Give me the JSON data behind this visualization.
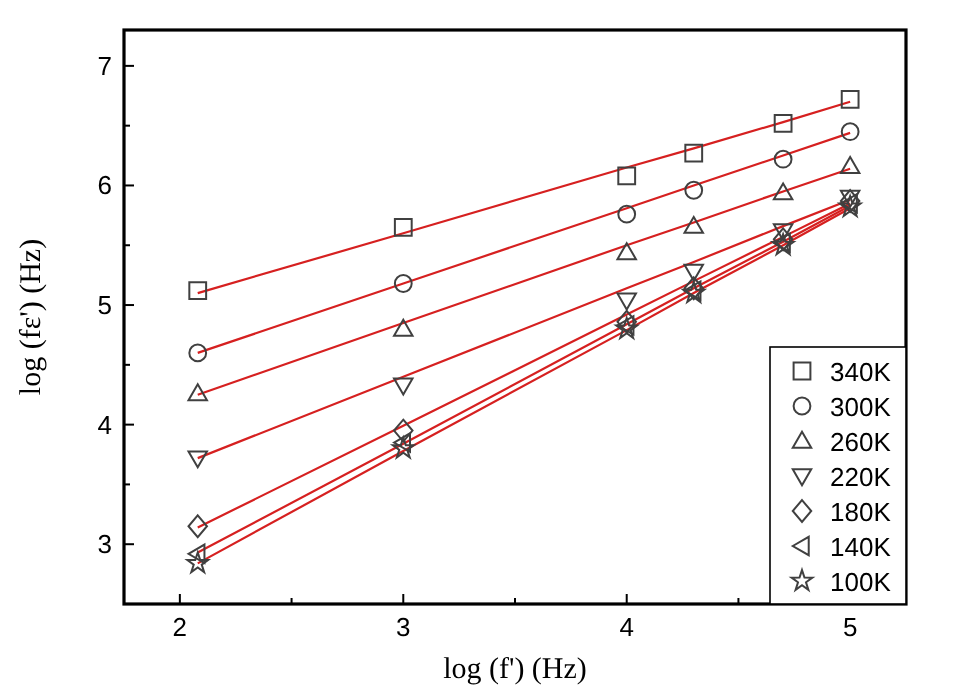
{
  "chart_data": {
    "type": "scatter",
    "xlabel": "log (f') (Hz)",
    "ylabel": "log (fε') (Hz)",
    "xlim": [
      1.75,
      5.25
    ],
    "ylim": [
      2.5,
      7.3
    ],
    "xticks": [
      2,
      {
        "value": 2.5,
        "label": null
      },
      3,
      {
        "value": 3.5,
        "label": null
      },
      4,
      {
        "value": 4.5,
        "label": null
      },
      5
    ],
    "yticks": [
      3,
      {
        "value": 3.5,
        "label": null
      },
      4,
      {
        "value": 4.5,
        "label": null
      },
      5,
      {
        "value": 5.5,
        "label": null
      },
      6,
      {
        "value": 6.5,
        "label": null
      },
      7
    ],
    "legend": "bottom right",
    "grid": false,
    "x": [
      2.08,
      3,
      4,
      4.3,
      4.7,
      5
    ],
    "series": [
      {
        "name": "340K",
        "color": "#404040",
        "marker": "square",
        "values": [
          5.12,
          5.65,
          6.08,
          6.27,
          6.52,
          6.72
        ]
      },
      {
        "name": "300K",
        "color": "#404040",
        "marker": "circle",
        "values": [
          4.6,
          5.18,
          5.76,
          5.96,
          6.22,
          6.45
        ]
      },
      {
        "name": "260K",
        "color": "#404040",
        "marker": "triangle",
        "values": [
          4.26,
          4.8,
          5.44,
          5.66,
          5.94,
          6.16
        ]
      },
      {
        "name": "220K",
        "color": "#404040",
        "marker": "triangle-down",
        "values": [
          3.72,
          4.33,
          5.04,
          5.28,
          5.62,
          5.9
        ]
      },
      {
        "name": "180K",
        "color": "#404040",
        "marker": "diamond",
        "values": [
          3.15,
          3.95,
          4.86,
          5.14,
          5.55,
          5.87
        ]
      },
      {
        "name": "140K",
        "color": "#404040",
        "marker": "triangle-left",
        "values": [
          2.92,
          3.85,
          4.83,
          5.12,
          5.52,
          5.85
        ]
      },
      {
        "name": "100K",
        "color": "#404040",
        "marker": "star",
        "values": [
          2.84,
          3.8,
          4.8,
          5.1,
          5.5,
          5.82
        ]
      },
      {
        "type": "line",
        "color": "#d62020",
        "values": [
          5.1,
          5.6,
          6.15,
          6.31,
          6.53,
          6.7
        ]
      },
      {
        "type": "line",
        "color": "#d62020",
        "values": [
          4.6,
          5.18,
          5.81,
          6.0,
          6.25,
          6.44
        ]
      },
      {
        "type": "line",
        "color": "#d62020",
        "values": [
          4.25,
          4.85,
          5.5,
          5.69,
          5.95,
          6.14
        ]
      },
      {
        "type": "line",
        "color": "#d62020",
        "values": [
          3.72,
          4.4,
          5.14,
          5.36,
          5.66,
          5.88
        ]
      },
      {
        "type": "line",
        "color": "#d62020",
        "values": [
          3.14,
          3.99,
          4.92,
          5.2,
          5.57,
          5.85
        ]
      },
      {
        "type": "line",
        "color": "#d62020",
        "values": [
          2.93,
          3.84,
          4.84,
          5.14,
          5.53,
          5.83
        ]
      },
      {
        "type": "line",
        "color": "#d62020",
        "values": [
          2.84,
          3.78,
          4.79,
          5.1,
          5.5,
          5.81
        ]
      }
    ]
  }
}
